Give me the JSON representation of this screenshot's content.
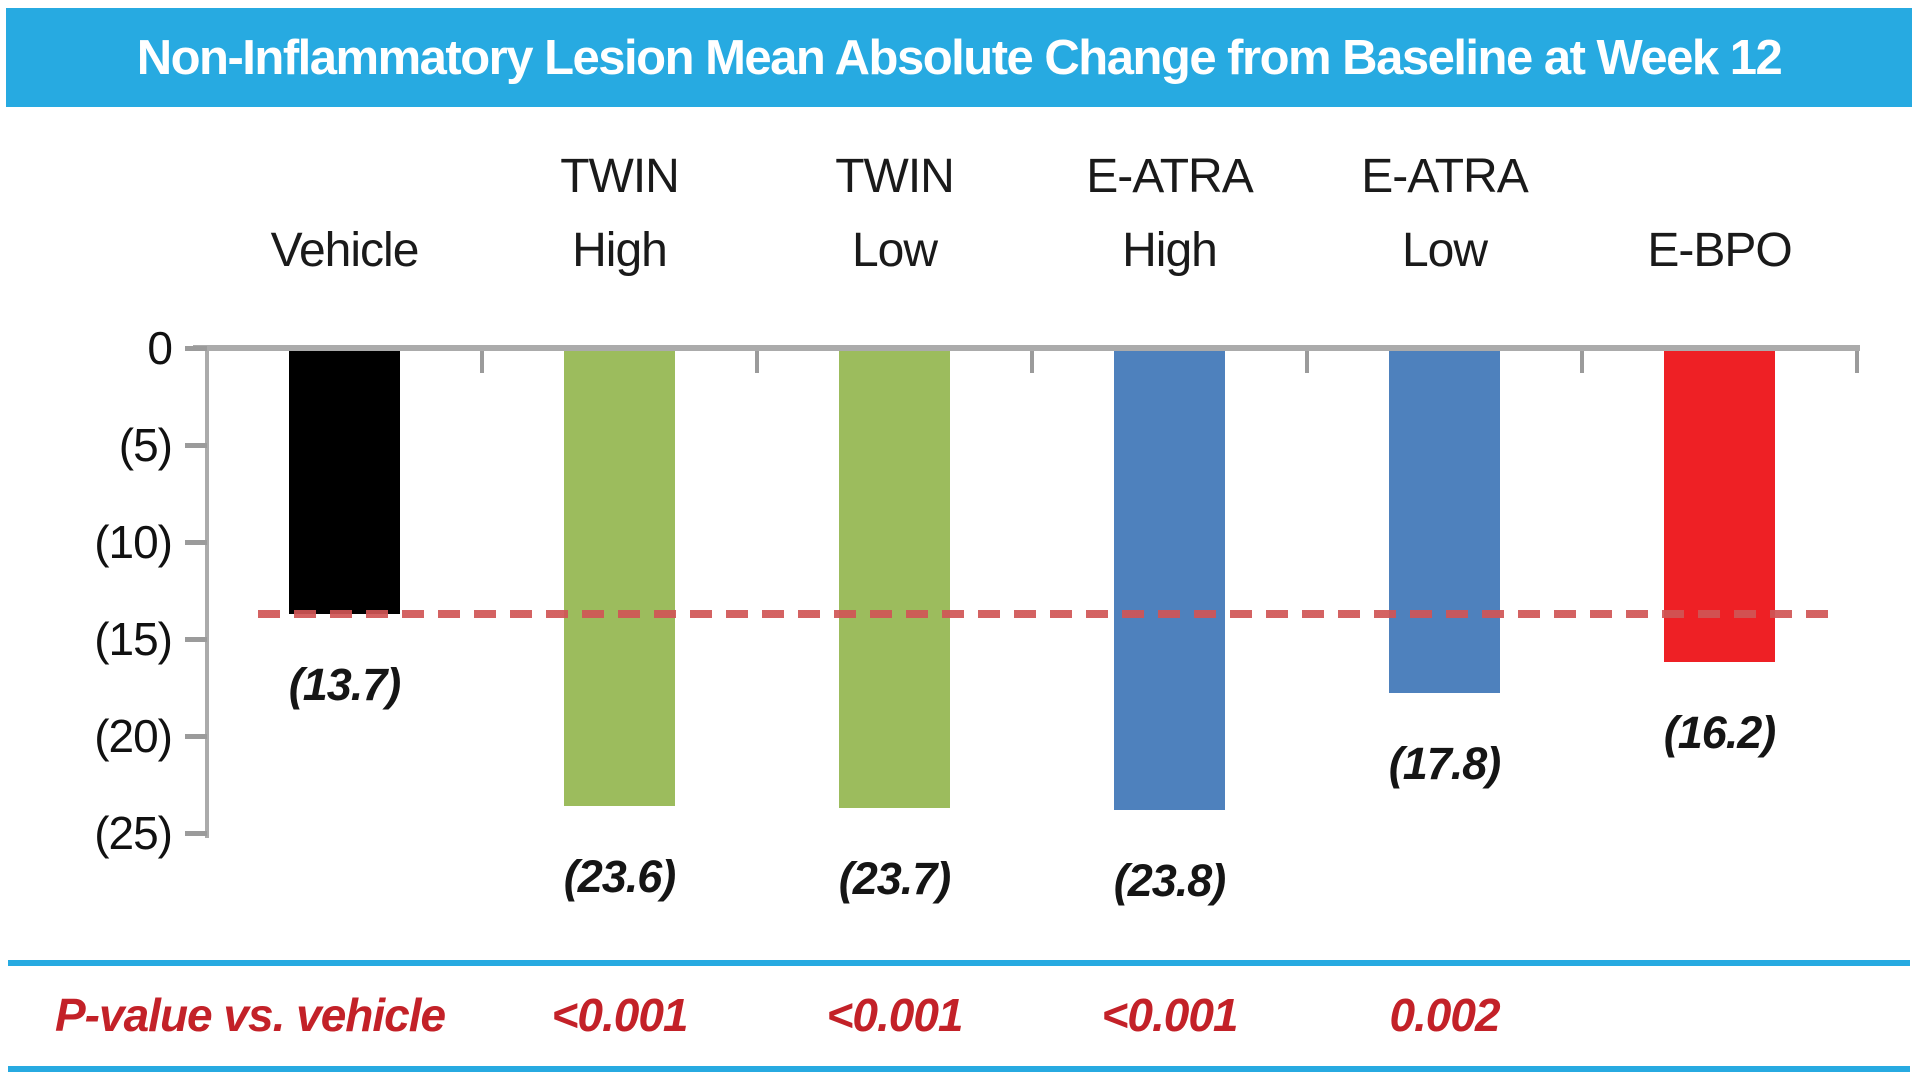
{
  "colors": {
    "accent_cyan": "#27AAE1",
    "axis_gray": "#ABABAB",
    "tick_gray": "#9B9B9B",
    "reference_line_red": "#D05555",
    "pvalue_red": "#C32128",
    "text_black": "#1a1a1a"
  },
  "chart_data": {
    "type": "bar",
    "title": "Non-Inflammatory Lesion Mean Absolute Change from Baseline at Week 12",
    "xlabel": "",
    "ylabel": "",
    "y_axis": {
      "tick_values": [
        0,
        5,
        10,
        15,
        20,
        25
      ],
      "tick_labels": [
        "0",
        "(5)",
        "(10)",
        "(15)",
        "(20)",
        "(25)"
      ],
      "range": [
        0,
        25
      ],
      "note": "bars extend downward; magnitudes shown in parentheses (negative change)"
    },
    "categories": [
      "Vehicle",
      "TWIN High",
      "TWIN Low",
      "E-ATRA High",
      "E-ATRA Low",
      "E-BPO"
    ],
    "category_lines": [
      [
        "",
        "Vehicle"
      ],
      [
        "TWIN",
        "High"
      ],
      [
        "TWIN",
        "Low"
      ],
      [
        "E-ATRA",
        "High"
      ],
      [
        "E-ATRA",
        "Low"
      ],
      [
        "",
        "E-BPO"
      ]
    ],
    "values": [
      13.7,
      23.6,
      23.7,
      23.8,
      17.8,
      16.2
    ],
    "value_labels": [
      "(13.7)",
      "(23.6)",
      "(23.7)",
      "(23.8)",
      "(17.8)",
      "(16.2)"
    ],
    "bar_colors": [
      "#000000",
      "#9CBC5D",
      "#9CBC5D",
      "#4E81BD",
      "#4E81BD",
      "#EE2025"
    ],
    "reference_line": {
      "value": 13.7,
      "style": "dashed",
      "color": "#D05555"
    },
    "legend": "none",
    "grid": "off",
    "p_value_row": {
      "label": "P-value vs. vehicle",
      "values": [
        null,
        "<0.001",
        "<0.001",
        "<0.001",
        "0.002",
        null
      ]
    }
  }
}
